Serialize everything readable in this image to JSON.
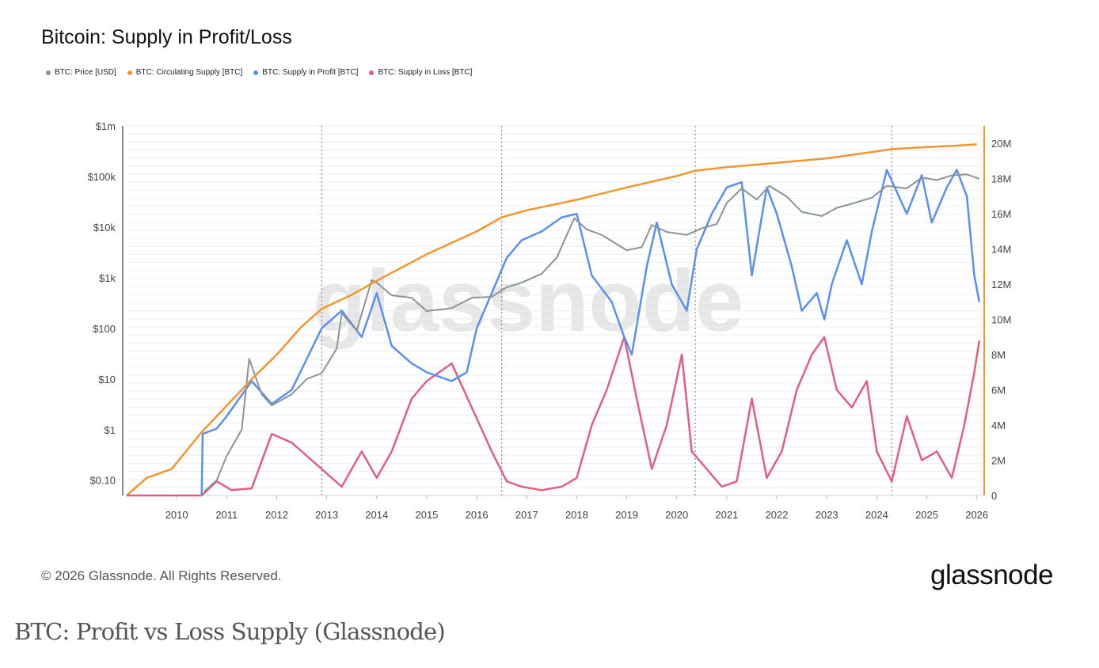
{
  "colors": {
    "price": "#8a9499",
    "supply": "#f0962e",
    "profit": "#5b8ff0",
    "loss": "#e0607e"
  },
  "chart_data": {
    "type": "line",
    "title": "Bitcoin: Supply in Profit/Loss",
    "legend": [
      {
        "name": "BTC: Price [USD]",
        "color": "#8a9499"
      },
      {
        "name": "BTC: Circulating Supply [BTC]",
        "color": "#f0962e"
      },
      {
        "name": "BTC: Supply in Profit [BTC]",
        "color": "#5b8ff0"
      },
      {
        "name": "BTC: Supply in Loss [BTC]",
        "color": "#e0607e"
      }
    ],
    "x_ticks": [
      "2010",
      "2011",
      "2012",
      "2013",
      "2014",
      "2015",
      "2016",
      "2017",
      "2018",
      "2019",
      "2020",
      "2021",
      "2022",
      "2023",
      "2024",
      "2025",
      "2026"
    ],
    "x_range": [
      2009.0,
      2026.1
    ],
    "left_axis": {
      "scale": "log",
      "range": [
        0.05,
        1000000
      ],
      "ticks": [
        {
          "label": "$1m",
          "value": 1000000
        },
        {
          "label": "$100k",
          "value": 100000
        },
        {
          "label": "$10k",
          "value": 10000
        },
        {
          "label": "$1k",
          "value": 1000
        },
        {
          "label": "$100",
          "value": 100
        },
        {
          "label": "$10",
          "value": 10
        },
        {
          "label": "$1",
          "value": 1
        },
        {
          "label": "$0.10",
          "value": 0.1
        }
      ]
    },
    "right_axis": {
      "scale": "linear",
      "range": [
        0,
        21000000
      ],
      "ticks": [
        {
          "label": "20M",
          "value": 20000000
        },
        {
          "label": "18M",
          "value": 18000000
        },
        {
          "label": "16M",
          "value": 16000000
        },
        {
          "label": "14M",
          "value": 14000000
        },
        {
          "label": "12M",
          "value": 12000000
        },
        {
          "label": "10M",
          "value": 10000000
        },
        {
          "label": "8M",
          "value": 8000000
        },
        {
          "label": "6M",
          "value": 6000000
        },
        {
          "label": "4M",
          "value": 4000000
        },
        {
          "label": "2M",
          "value": 2000000
        },
        {
          "label": "0",
          "value": 0
        }
      ]
    },
    "halvings": [
      2012.9,
      2016.5,
      2020.37,
      2024.3
    ],
    "series": [
      {
        "name": "BTC: Circulating Supply [BTC]",
        "axis": "right",
        "x": [
          2009.0,
          2009.4,
          2009.9,
          2010.5,
          2011.0,
          2011.5,
          2012.0,
          2012.5,
          2012.9,
          2013.5,
          2014.0,
          2015.0,
          2016.0,
          2016.5,
          2017.0,
          2018.0,
          2019.0,
          2020.0,
          2020.37,
          2021.0,
          2022.0,
          2023.0,
          2024.0,
          2024.3,
          2025.0,
          2025.5,
          2026.0
        ],
        "values": [
          0,
          1000000,
          1500000,
          3600000,
          5100000,
          6600000,
          8000000,
          9600000,
          10600000,
          11400000,
          12200000,
          13700000,
          15000000,
          15800000,
          16200000,
          16800000,
          17500000,
          18150000,
          18450000,
          18650000,
          18900000,
          19150000,
          19550000,
          19680000,
          19800000,
          19860000,
          19950000
        ]
      },
      {
        "name": "BTC: Price [USD]",
        "axis": "left",
        "x": [
          2010.55,
          2010.8,
          2011.0,
          2011.3,
          2011.45,
          2011.7,
          2011.9,
          2012.3,
          2012.6,
          2012.9,
          2013.2,
          2013.3,
          2013.6,
          2013.9,
          2014.0,
          2014.3,
          2014.7,
          2015.0,
          2015.5,
          2015.9,
          2016.3,
          2016.6,
          2016.9,
          2017.3,
          2017.6,
          2017.95,
          2018.2,
          2018.5,
          2018.9,
          2019.0,
          2019.3,
          2019.5,
          2019.8,
          2020.2,
          2020.5,
          2020.8,
          2021.0,
          2021.3,
          2021.6,
          2021.85,
          2022.2,
          2022.5,
          2022.9,
          2023.2,
          2023.5,
          2023.9,
          2024.2,
          2024.6,
          2024.9,
          2025.2,
          2025.5,
          2025.8,
          2026.05
        ],
        "values": [
          0.06,
          0.1,
          0.3,
          1.0,
          25,
          5,
          3,
          5,
          10,
          13,
          40,
          200,
          90,
          900,
          800,
          450,
          400,
          220,
          250,
          400,
          420,
          650,
          800,
          1200,
          2500,
          15000,
          9000,
          7000,
          4000,
          3500,
          4000,
          11000,
          8000,
          7000,
          9500,
          11500,
          30000,
          58000,
          35000,
          65000,
          40000,
          20000,
          16500,
          24000,
          29000,
          38000,
          65000,
          58000,
          95000,
          85000,
          105000,
          110000,
          90000
        ]
      },
      {
        "name": "BTC: Supply in Profit [BTC]",
        "axis": "right",
        "x": [
          2010.5,
          2010.52,
          2010.8,
          2011.0,
          2011.5,
          2011.9,
          2012.3,
          2012.9,
          2013.3,
          2013.7,
          2014.0,
          2014.3,
          2014.7,
          2015.0,
          2015.5,
          2015.8,
          2016.0,
          2016.3,
          2016.6,
          2016.9,
          2017.3,
          2017.7,
          2018.0,
          2018.3,
          2018.7,
          2018.95,
          2019.1,
          2019.4,
          2019.6,
          2019.9,
          2020.2,
          2020.4,
          2020.7,
          2021.0,
          2021.3,
          2021.5,
          2021.8,
          2022.0,
          2022.3,
          2022.5,
          2022.8,
          2022.95,
          2023.1,
          2023.4,
          2023.7,
          2023.9,
          2024.2,
          2024.6,
          2024.9,
          2025.1,
          2025.4,
          2025.6,
          2025.8,
          2025.95,
          2026.05
        ],
        "values": [
          0,
          3500000,
          3800000,
          4500000,
          6500000,
          5200000,
          6000000,
          9500000,
          10500000,
          9000000,
          11500000,
          8500000,
          7500000,
          7000000,
          6500000,
          7000000,
          9500000,
          11500000,
          13500000,
          14500000,
          15000000,
          15800000,
          16000000,
          12500000,
          11000000,
          9000000,
          8000000,
          13000000,
          15500000,
          12000000,
          10500000,
          14000000,
          16000000,
          17500000,
          17800000,
          12500000,
          17500000,
          16000000,
          13000000,
          10500000,
          11500000,
          10000000,
          12000000,
          14500000,
          12000000,
          15000000,
          18500000,
          16000000,
          18200000,
          15500000,
          17500000,
          18500000,
          17000000,
          12500000,
          11000000
        ]
      },
      {
        "name": "BTC: Supply in Loss [BTC]",
        "axis": "right",
        "x": [
          2010.5,
          2010.8,
          2011.1,
          2011.5,
          2011.9,
          2012.3,
          2012.9,
          2013.3,
          2013.7,
          2014.0,
          2014.3,
          2014.7,
          2015.0,
          2015.5,
          2015.9,
          2016.3,
          2016.6,
          2016.9,
          2017.3,
          2017.7,
          2018.0,
          2018.3,
          2018.6,
          2018.95,
          2019.2,
          2019.5,
          2019.8,
          2020.1,
          2020.3,
          2020.6,
          2020.9,
          2021.2,
          2021.5,
          2021.8,
          2022.1,
          2022.4,
          2022.7,
          2022.95,
          2023.2,
          2023.5,
          2023.8,
          2024.0,
          2024.3,
          2024.6,
          2024.9,
          2025.2,
          2025.5,
          2025.75,
          2025.95,
          2026.05
        ],
        "values": [
          0,
          800000,
          300000,
          400000,
          3500000,
          3000000,
          1500000,
          500000,
          2500000,
          1000000,
          2500000,
          5500000,
          6500000,
          7500000,
          5000000,
          2500000,
          800000,
          500000,
          300000,
          500000,
          1000000,
          4000000,
          6000000,
          9000000,
          5500000,
          1500000,
          4000000,
          8000000,
          2500000,
          1500000,
          500000,
          800000,
          5500000,
          1000000,
          2500000,
          6000000,
          8000000,
          9000000,
          6000000,
          5000000,
          6500000,
          2500000,
          800000,
          4500000,
          2000000,
          2500000,
          1000000,
          4000000,
          7000000,
          8800000
        ]
      }
    ]
  },
  "watermark": "glassnode",
  "footer": {
    "copyright": "© 2026 Glassnode. All Rights Reserved.",
    "brand": "glassnode"
  },
  "caption": "BTC: Profit vs Loss Supply (Glassnode)"
}
